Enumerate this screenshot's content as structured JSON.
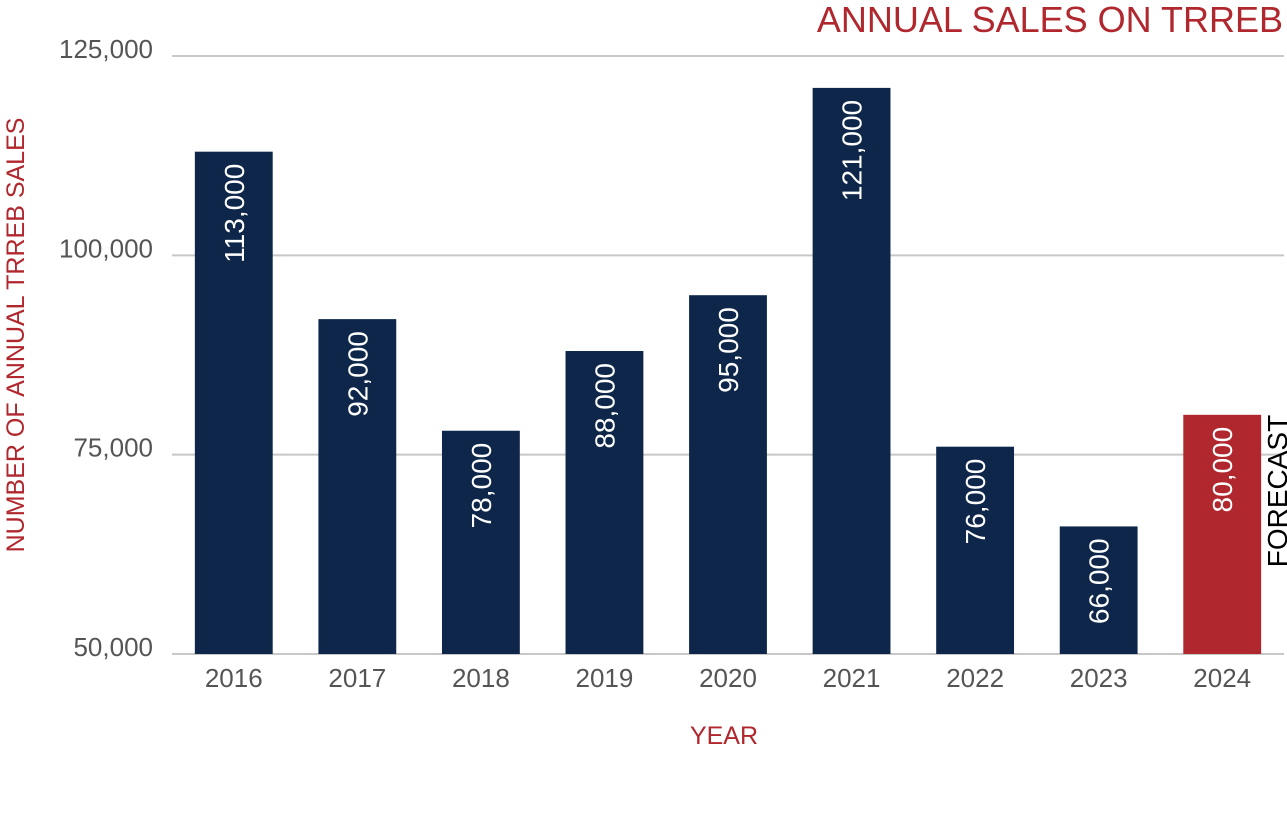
{
  "colors": {
    "bar": "#0d2649",
    "forecast_bar": "#b0272e",
    "accent": "#b0272e",
    "grid": "#c8c8c8",
    "tick_text": "#555555",
    "data_label": "#ffffff",
    "note_text": "#000000"
  },
  "chart_data": {
    "type": "bar",
    "title": "ANNUAL SALES ON TRREB",
    "xlabel": "YEAR",
    "ylabel": "NUMBER OF ANNUAL TRREB SALES",
    "ylim": [
      50000,
      125000
    ],
    "yticks": [
      50000,
      75000,
      100000,
      125000
    ],
    "ytick_labels": [
      "50,000",
      "75,000",
      "100,000",
      "125,000"
    ],
    "grid": true,
    "categories": [
      "2016",
      "2017",
      "2018",
      "2019",
      "2020",
      "2021",
      "2022",
      "2023",
      "2024"
    ],
    "values": [
      113000,
      92000,
      78000,
      88000,
      95000,
      121000,
      76000,
      66000,
      80000
    ],
    "data_labels": [
      "113,000",
      "92,000",
      "78,000",
      "88,000",
      "95,000",
      "121,000",
      "76,000",
      "66,000",
      "80,000"
    ],
    "forecast_index": 8,
    "annotations": [
      {
        "category": "2024",
        "text": "FORECAST"
      }
    ]
  }
}
